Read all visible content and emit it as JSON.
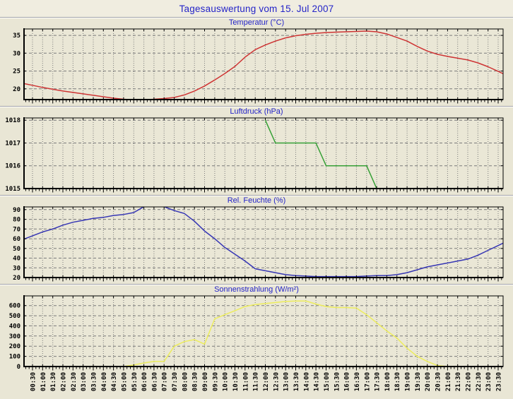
{
  "page": {
    "title": "Tagesauswertung vom 15. Jul 2007"
  },
  "colors": {
    "page_bg": "#E9E6D5",
    "header_bg": "#F0EDE0",
    "plot_bg": "#EAE7D6",
    "grid": "#7A7A7A",
    "axis": "#000000",
    "tick_text": "#000000",
    "title_text": "#2424C8"
  },
  "chart_data": [
    {
      "type": "line",
      "title": "Temperatur (°C)",
      "color": "#CE3434",
      "ylabel": "°C",
      "ymin": 17.0,
      "ymax": 36.8,
      "yticks": [
        20,
        25,
        30,
        35
      ],
      "grid": true,
      "categories": [
        "00:30",
        "01:00",
        "01:30",
        "02:00",
        "02:30",
        "03:00",
        "03:30",
        "04:00",
        "04:30",
        "05:00",
        "05:30",
        "06:00",
        "06:30",
        "07:00",
        "07:30",
        "08:00",
        "08:30",
        "09:00",
        "09:30",
        "10:00",
        "10:30",
        "11:00",
        "11:30",
        "12:00",
        "12:30",
        "13:00",
        "13:30",
        "14:00",
        "14:30",
        "15:00",
        "15:30",
        "16:00",
        "16:30",
        "17:00",
        "17:30",
        "18:00",
        "18:30",
        "19:00",
        "19:30",
        "20:00",
        "20:30",
        "21:00",
        "21:30",
        "22:00",
        "22:30",
        "23:00",
        "23:30"
      ],
      "values": [
        21.0,
        20.4,
        19.9,
        19.4,
        19.0,
        18.6,
        18.2,
        17.8,
        17.4,
        17.1,
        16.9,
        16.9,
        17.1,
        17.3,
        17.6,
        18.3,
        19.4,
        20.8,
        22.5,
        24.3,
        26.3,
        28.9,
        31.0,
        32.3,
        33.4,
        34.3,
        34.9,
        35.3,
        35.6,
        35.8,
        35.9,
        36.0,
        36.1,
        36.2,
        36.0,
        35.4,
        34.4,
        33.4,
        31.9,
        30.6,
        29.7,
        29.1,
        28.6,
        28.1,
        27.3,
        26.2,
        24.9
      ]
    },
    {
      "type": "line",
      "title": "Luftdruck (hPa)",
      "color": "#36A036",
      "ylabel": "hPa",
      "ymin": 1015,
      "ymax": 1018.1,
      "yticks": [
        1015,
        1016,
        1017,
        1018
      ],
      "grid": true,
      "categories": [
        "00:30",
        "01:00",
        "01:30",
        "02:00",
        "02:30",
        "03:00",
        "03:30",
        "04:00",
        "04:30",
        "05:00",
        "05:30",
        "06:00",
        "06:30",
        "07:00",
        "07:30",
        "08:00",
        "08:30",
        "09:00",
        "09:30",
        "10:00",
        "10:30",
        "11:00",
        "11:30",
        "12:00",
        "12:30",
        "13:00",
        "13:30",
        "14:00",
        "14:30",
        "15:00",
        "15:30",
        "16:00",
        "16:30",
        "17:00",
        "17:30",
        "18:00",
        "18:30",
        "19:00",
        "19:30",
        "20:00",
        "20:30",
        "21:00",
        "21:30",
        "22:00",
        "22:30",
        "23:00",
        "23:30"
      ],
      "values": [
        null,
        null,
        null,
        null,
        null,
        null,
        null,
        null,
        null,
        null,
        null,
        null,
        null,
        null,
        null,
        null,
        null,
        null,
        null,
        null,
        null,
        null,
        null,
        1018,
        1017,
        1017,
        1017,
        1017,
        1017,
        1016,
        1016,
        1016,
        1016,
        1016,
        1015,
        null,
        null,
        null,
        null,
        null,
        null,
        null,
        null,
        null,
        null,
        null,
        null
      ]
    },
    {
      "type": "line",
      "title": "Rel. Feuchte (%)",
      "color": "#3636B4",
      "ylabel": "%",
      "ymin": 20,
      "ymax": 92.8,
      "yticks": [
        20,
        30,
        40,
        50,
        60,
        70,
        80,
        90
      ],
      "grid": true,
      "categories": [
        "00:30",
        "01:00",
        "01:30",
        "02:00",
        "02:30",
        "03:00",
        "03:30",
        "04:00",
        "04:30",
        "05:00",
        "05:30",
        "06:00",
        "06:30",
        "07:00",
        "07:30",
        "08:00",
        "08:30",
        "09:00",
        "09:30",
        "10:00",
        "10:30",
        "11:00",
        "11:30",
        "12:00",
        "12:30",
        "13:00",
        "13:30",
        "14:00",
        "14:30",
        "15:00",
        "15:30",
        "16:00",
        "16:30",
        "17:00",
        "17:30",
        "18:00",
        "18:30",
        "19:00",
        "19:30",
        "20:00",
        "20:30",
        "21:00",
        "21:30",
        "22:00",
        "22:30",
        "23:00",
        "23:30"
      ],
      "values": [
        63,
        67,
        70,
        74,
        77,
        79,
        81,
        82,
        84,
        85,
        87,
        93,
        93.5,
        93,
        89,
        86,
        78,
        68,
        60,
        51,
        44,
        37,
        29,
        27,
        25,
        23,
        22,
        21.5,
        21,
        21,
        21,
        21,
        21,
        21.5,
        22,
        22,
        23,
        25,
        28,
        31,
        33,
        35,
        37,
        39,
        43,
        48,
        53
      ]
    },
    {
      "type": "line",
      "title": "Sonnenstrahlung (W/m²)",
      "color": "#EDED5C",
      "ylabel": "W/m²",
      "ymin": 0,
      "ymax": 695,
      "yticks": [
        0,
        100,
        200,
        300,
        400,
        500,
        600
      ],
      "grid": true,
      "show_x_labels": true,
      "categories": [
        "00:30",
        "01:00",
        "01:30",
        "02:00",
        "02:30",
        "03:00",
        "03:30",
        "04:00",
        "04:30",
        "05:00",
        "05:30",
        "06:00",
        "06:30",
        "07:00",
        "07:30",
        "08:00",
        "08:30",
        "09:00",
        "09:30",
        "10:00",
        "10:30",
        "11:00",
        "11:30",
        "12:00",
        "12:30",
        "13:00",
        "13:30",
        "14:00",
        "14:30",
        "15:00",
        "15:30",
        "16:00",
        "16:30",
        "17:00",
        "17:30",
        "18:00",
        "18:30",
        "19:00",
        "19:30",
        "20:00",
        "20:30",
        "21:00",
        "21:30",
        "22:00",
        "22:30",
        "23:00",
        "23:30"
      ],
      "values": [
        0,
        0,
        0,
        0,
        0,
        0,
        0,
        0,
        0,
        0,
        15,
        35,
        50,
        50,
        200,
        245,
        265,
        220,
        470,
        510,
        550,
        590,
        610,
        620,
        630,
        640,
        645,
        645,
        615,
        590,
        580,
        580,
        575,
        510,
        430,
        350,
        280,
        180,
        100,
        50,
        10,
        0,
        0,
        0,
        0,
        0,
        0
      ]
    }
  ]
}
